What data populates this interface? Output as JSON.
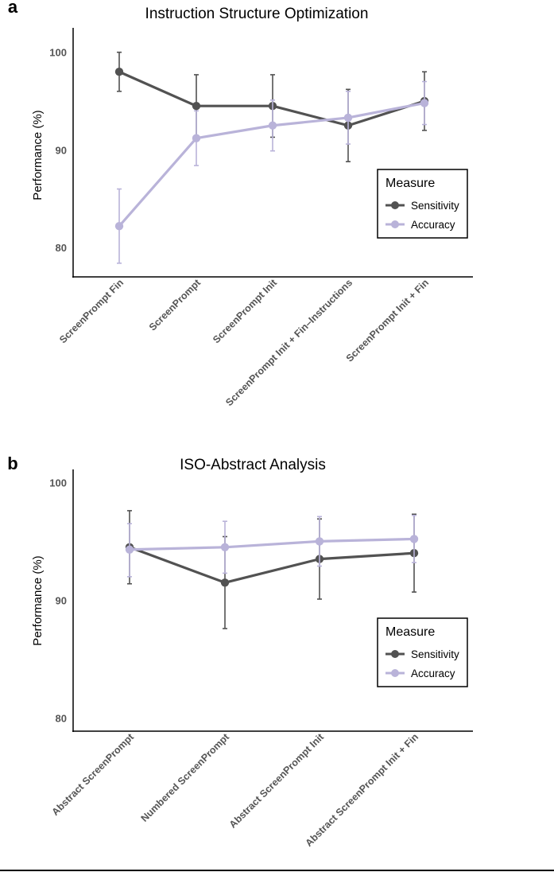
{
  "chart_data": [
    {
      "panel_label": "a",
      "type": "line",
      "title": "Instruction Structure Optimization",
      "xlabel": "",
      "ylabel": "Performance (%)",
      "ylim": [
        77,
        102.5
      ],
      "yticks": [
        80,
        90,
        100
      ],
      "categories": [
        "ScreenPrompt Fin",
        "ScreenPrompt",
        "ScreenPrompt Init",
        "ScreenPrompt Init + Fin–Instructions",
        "ScreenPrompt Init + Fin"
      ],
      "series": [
        {
          "name": "Sensitivity",
          "color": "#525252",
          "values": [
            98.0,
            94.5,
            94.5,
            92.5,
            95.0
          ],
          "err_low": [
            96.0,
            91.3,
            91.3,
            88.8,
            92.0
          ],
          "err_high": [
            100.0,
            97.7,
            97.7,
            96.2,
            98.0
          ]
        },
        {
          "name": "Accuracy",
          "color": "#b9b3d9",
          "values": [
            82.2,
            91.2,
            92.5,
            93.3,
            94.8
          ],
          "err_low": [
            78.4,
            88.4,
            89.9,
            90.6,
            92.6
          ],
          "err_high": [
            86.0,
            94.0,
            95.1,
            96.0,
            97.0
          ]
        }
      ],
      "grid": false,
      "legend": {
        "title": "Measure",
        "placement": "right"
      }
    },
    {
      "panel_label": "b",
      "type": "line",
      "title": "ISO-Abstract Analysis",
      "xlabel": "",
      "ylabel": "Performance (%)",
      "ylim": [
        78.9,
        101.1
      ],
      "yticks": [
        80,
        90,
        100
      ],
      "categories": [
        "Abstract ScreenPrompt",
        "Numbered ScreenPrompt",
        "Abstract ScreenPrompt Init",
        "Abstract ScreenPrompt Init + Fin"
      ],
      "series": [
        {
          "name": "Sensitivity",
          "color": "#525252",
          "values": [
            94.5,
            91.5,
            93.5,
            94.0
          ],
          "err_low": [
            91.4,
            87.6,
            90.1,
            90.7
          ],
          "err_high": [
            97.6,
            95.4,
            96.9,
            97.3
          ]
        },
        {
          "name": "Accuracy",
          "color": "#b9b3d9",
          "values": [
            94.3,
            94.5,
            95.0,
            95.2
          ],
          "err_low": [
            92.0,
            92.3,
            92.9,
            93.2
          ],
          "err_high": [
            96.5,
            96.7,
            97.1,
            97.2
          ]
        }
      ],
      "grid": false,
      "legend": {
        "title": "Measure",
        "placement": "right"
      }
    }
  ]
}
